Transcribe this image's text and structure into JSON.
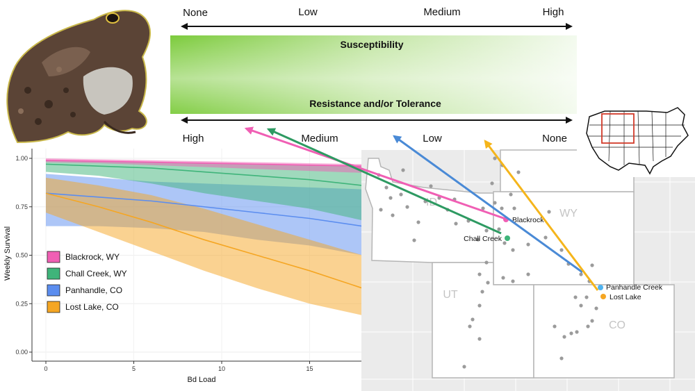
{
  "scale": {
    "susceptibility_ticks": [
      "None",
      "Low",
      "Medium",
      "High"
    ],
    "susceptibility_label": "Susceptibility",
    "resistance_label": "Resistance and/or Tolerance",
    "resistance_ticks": [
      "High",
      "Medium",
      "Low",
      "None"
    ]
  },
  "chart_data": {
    "type": "line",
    "xlabel": "Bd Load",
    "ylabel": "Weekly Survival",
    "xlim": [
      0,
      18
    ],
    "ylim": [
      0,
      1
    ],
    "x_ticks": [
      0,
      5,
      10,
      15
    ],
    "x_tick_labels": [
      "0",
      "5",
      "10",
      "15"
    ],
    "y_ticks": [
      0,
      0.25,
      0.5,
      0.75,
      1
    ],
    "y_tick_labels": [
      "0.00",
      "0.25",
      "0.50",
      "0.75",
      "1.00"
    ],
    "x": [
      0,
      3,
      6,
      9,
      12,
      15,
      18
    ],
    "series": [
      {
        "name": "Blackrock, WY",
        "color": "#f05fb4",
        "values": [
          0.99,
          0.985,
          0.98,
          0.975,
          0.97,
          0.965,
          0.96
        ],
        "lower": [
          0.98,
          0.975,
          0.965,
          0.955,
          0.945,
          0.935,
          0.925
        ],
        "upper": [
          1.0,
          0.995,
          0.99,
          0.985,
          0.98,
          0.975,
          0.97
        ]
      },
      {
        "name": "Chall Creek, WY",
        "color": "#3fb47a",
        "values": [
          0.97,
          0.96,
          0.95,
          0.93,
          0.91,
          0.89,
          0.86
        ],
        "lower": [
          0.93,
          0.91,
          0.87,
          0.82,
          0.78,
          0.74,
          0.68
        ],
        "upper": [
          0.99,
          0.985,
          0.98,
          0.975,
          0.97,
          0.965,
          0.96
        ]
      },
      {
        "name": "Panhandle, CO",
        "color": "#5b8def",
        "values": [
          0.82,
          0.8,
          0.78,
          0.75,
          0.72,
          0.69,
          0.65
        ],
        "lower": [
          0.65,
          0.65,
          0.64,
          0.62,
          0.58,
          0.55,
          0.5
        ],
        "upper": [
          0.92,
          0.9,
          0.88,
          0.87,
          0.86,
          0.85,
          0.84
        ]
      },
      {
        "name": "Lost Lake, CO",
        "color": "#f5a623",
        "values": [
          0.82,
          0.75,
          0.67,
          0.58,
          0.5,
          0.42,
          0.33
        ],
        "lower": [
          0.72,
          0.62,
          0.52,
          0.42,
          0.33,
          0.25,
          0.19
        ],
        "upper": [
          0.9,
          0.86,
          0.81,
          0.74,
          0.66,
          0.58,
          0.5
        ]
      }
    ]
  },
  "map": {
    "states": [
      "ID",
      "WY",
      "UT",
      "CO"
    ],
    "sites": [
      {
        "name": "Blackrock",
        "color": "#f05fb4"
      },
      {
        "name": "Chall Creek",
        "color": "#3fb47a"
      },
      {
        "name": "Panhandle Creek",
        "color": "#4fb3f0"
      },
      {
        "name": "Lost Lake",
        "color": "#f5a623"
      }
    ]
  }
}
